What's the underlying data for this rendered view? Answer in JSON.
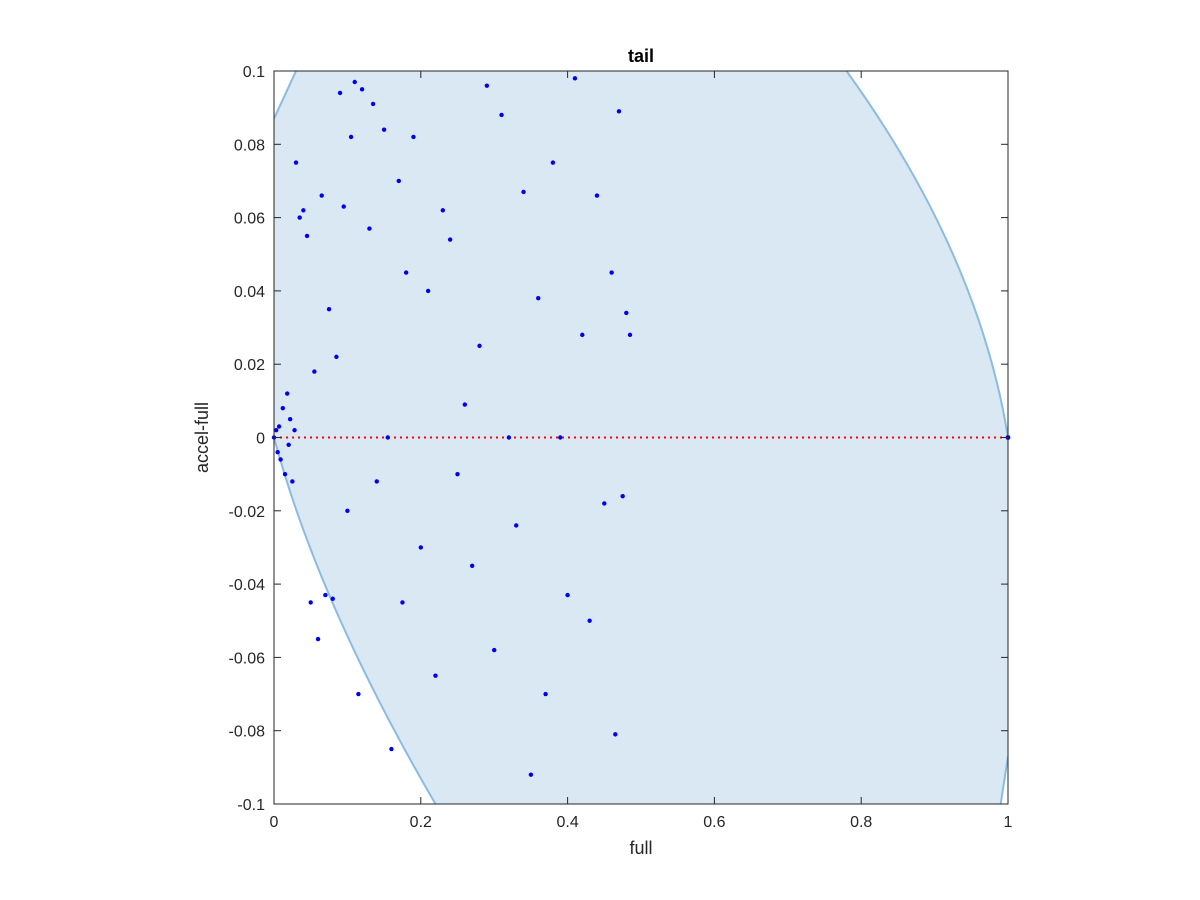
{
  "chart_data": {
    "type": "scatter",
    "title": "tail",
    "xlabel": "full",
    "ylabel": "accel-full",
    "xlim": [
      0,
      1
    ],
    "ylim": [
      -0.1,
      0.1
    ],
    "xticks": [
      "0",
      "0.2",
      "0.4",
      "0.6",
      "0.8",
      "1"
    ],
    "yticks": [
      "-0.1",
      "-0.08",
      "-0.06",
      "-0.04",
      "-0.02",
      "0",
      "0.02",
      "0.04",
      "0.06",
      "0.08",
      "0.1"
    ],
    "grid": false,
    "colors": {
      "region_fill": "#d9e8f3",
      "region_edge": "#8bbce0",
      "points": "#0000ee",
      "reference_line": "#ff0000",
      "axes": "#262626"
    },
    "region": {
      "description_kind": "shaded feasible region",
      "left_boundary": [
        [
          0,
          0.087
        ],
        [
          0.03,
          0.1
        ],
        [
          0,
          0
        ],
        [
          0.22,
          -0.1
        ]
      ],
      "right_boundary": [
        [
          0.78,
          0.1
        ],
        [
          0.85,
          0.09
        ],
        [
          0.9,
          0.062
        ],
        [
          0.95,
          0.03
        ],
        [
          1.0,
          0.0
        ],
        [
          0.99,
          -0.1
        ]
      ]
    },
    "reference_line": {
      "y": 0,
      "style": "dotted"
    },
    "series": [
      {
        "points": [
          [
            0,
            0
          ],
          [
            0.003,
            0.002
          ],
          [
            0.005,
            -0.004
          ],
          [
            0.007,
            0.003
          ],
          [
            0.009,
            -0.006
          ],
          [
            0.012,
            0.008
          ],
          [
            0.015,
            -0.01
          ],
          [
            0.018,
            0.012
          ],
          [
            0.02,
            -0.002
          ],
          [
            0.022,
            0.005
          ],
          [
            0.025,
            -0.012
          ],
          [
            0.028,
            0.002
          ],
          [
            0.03,
            0.075
          ],
          [
            0.035,
            0.06
          ],
          [
            0.04,
            0.062
          ],
          [
            0.045,
            0.055
          ],
          [
            0.05,
            -0.045
          ],
          [
            0.055,
            0.018
          ],
          [
            0.06,
            -0.055
          ],
          [
            0.065,
            0.066
          ],
          [
            0.07,
            -0.043
          ],
          [
            0.075,
            0.035
          ],
          [
            0.08,
            -0.044
          ],
          [
            0.085,
            0.022
          ],
          [
            0.09,
            0.094
          ],
          [
            0.095,
            0.063
          ],
          [
            0.1,
            -0.02
          ],
          [
            0.105,
            0.082
          ],
          [
            0.11,
            0.097
          ],
          [
            0.115,
            -0.07
          ],
          [
            0.12,
            0.095
          ],
          [
            0.13,
            0.057
          ],
          [
            0.135,
            0.091
          ],
          [
            0.14,
            -0.012
          ],
          [
            0.15,
            0.084
          ],
          [
            0.155,
            0.0
          ],
          [
            0.16,
            -0.085
          ],
          [
            0.17,
            0.07
          ],
          [
            0.175,
            -0.045
          ],
          [
            0.18,
            0.045
          ],
          [
            0.19,
            0.082
          ],
          [
            0.2,
            -0.03
          ],
          [
            0.21,
            0.04
          ],
          [
            0.22,
            -0.065
          ],
          [
            0.23,
            0.062
          ],
          [
            0.24,
            0.054
          ],
          [
            0.25,
            -0.01
          ],
          [
            0.26,
            0.009
          ],
          [
            0.27,
            -0.035
          ],
          [
            0.28,
            0.025
          ],
          [
            0.29,
            0.096
          ],
          [
            0.3,
            -0.058
          ],
          [
            0.31,
            0.088
          ],
          [
            0.32,
            0.0
          ],
          [
            0.33,
            -0.024
          ],
          [
            0.34,
            0.067
          ],
          [
            0.35,
            -0.092
          ],
          [
            0.36,
            0.038
          ],
          [
            0.37,
            -0.07
          ],
          [
            0.38,
            0.075
          ],
          [
            0.39,
            0.0
          ],
          [
            0.4,
            -0.043
          ],
          [
            0.41,
            0.098
          ],
          [
            0.42,
            0.028
          ],
          [
            0.43,
            -0.05
          ],
          [
            0.44,
            0.066
          ],
          [
            0.45,
            -0.018
          ],
          [
            0.46,
            0.045
          ],
          [
            0.465,
            -0.081
          ],
          [
            0.47,
            0.089
          ],
          [
            0.475,
            -0.016
          ],
          [
            0.48,
            0.034
          ],
          [
            0.485,
            0.028
          ]
        ]
      }
    ]
  }
}
